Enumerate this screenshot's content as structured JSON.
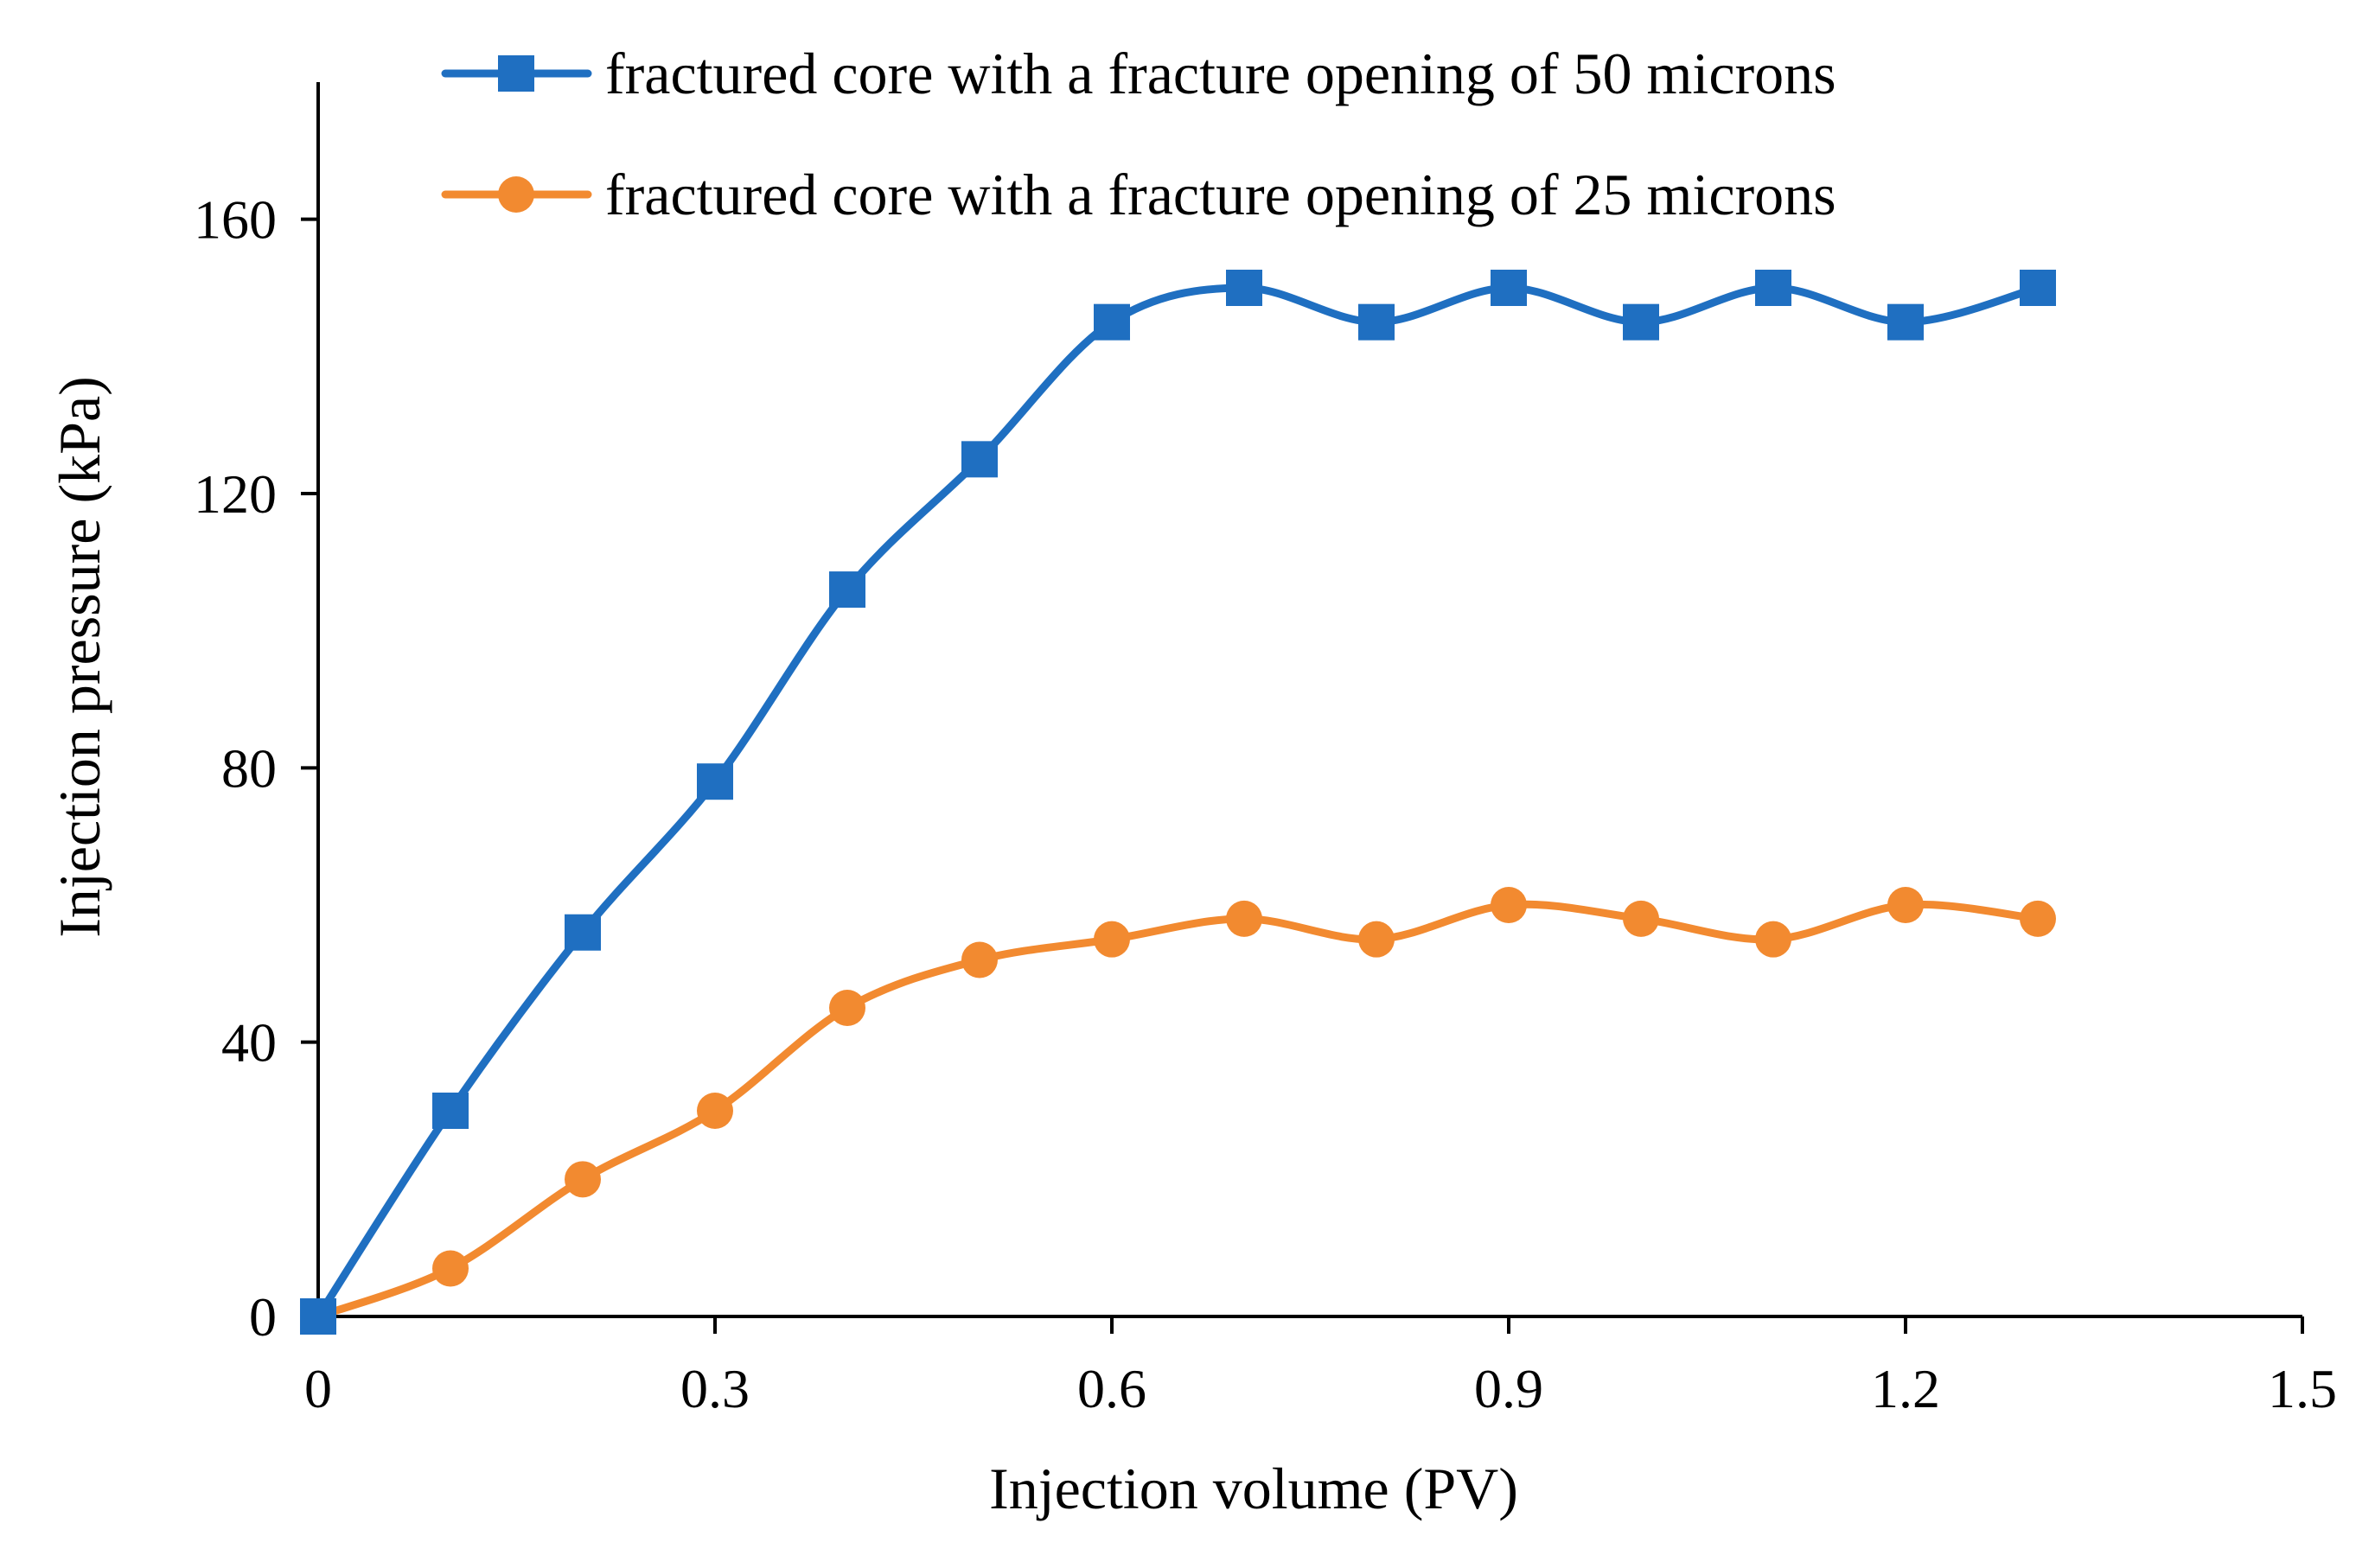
{
  "chart_data": {
    "type": "line",
    "title": "",
    "xlabel": "Injection volume (PV)",
    "ylabel": "Injection pressure (kPa)",
    "xlim": [
      0,
      1.5
    ],
    "ylim": [
      0,
      180
    ],
    "xticks": [
      0,
      0.3,
      0.6,
      0.9,
      1.2,
      1.5
    ],
    "xtick_labels": [
      "0",
      "0.3",
      "0.6",
      "0.9",
      "1.2",
      "1.5"
    ],
    "yticks": [
      0,
      40,
      80,
      120,
      160
    ],
    "ytick_labels": [
      "0",
      "40",
      "80",
      "120",
      "160"
    ],
    "grid": false,
    "legend_position": "top",
    "x": [
      0,
      0.1,
      0.2,
      0.3,
      0.4,
      0.5,
      0.6,
      0.7,
      0.8,
      0.9,
      1.0,
      1.1,
      1.2,
      1.3
    ],
    "series": [
      {
        "name": "fractured core with a fracture opening of 50 microns",
        "color": "#1F6FC1",
        "marker": "square",
        "values": [
          0,
          30,
          56,
          78,
          106,
          125,
          145,
          150,
          145,
          150,
          145,
          150,
          145,
          150
        ]
      },
      {
        "name": "fractured core with a fracture opening of 25 microns",
        "color": "#F28A30",
        "marker": "circle",
        "values": [
          0,
          7,
          20,
          30,
          45,
          52,
          55,
          58,
          55,
          60,
          58,
          55,
          60,
          58
        ]
      }
    ]
  }
}
